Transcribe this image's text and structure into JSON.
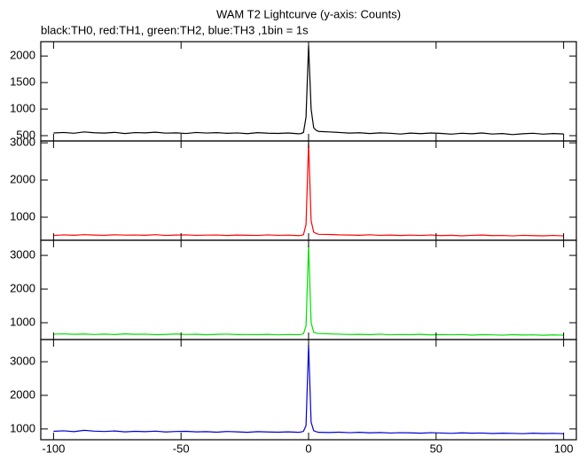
{
  "chart_data": {
    "type": "line",
    "title": "WAM T2 Lightcurve (y-axis: Counts)",
    "subtitle": "black:TH0, red:TH1, green:TH2, blue:TH3 ,1bin = 1s",
    "x": [
      -100,
      -96,
      -92,
      -88,
      -84,
      -80,
      -76,
      -72,
      -68,
      -64,
      -60,
      -56,
      -52,
      -48,
      -44,
      -40,
      -36,
      -32,
      -28,
      -24,
      -20,
      -16,
      -12,
      -8,
      -4,
      -3,
      -2,
      -1,
      0,
      1,
      2,
      3,
      4,
      8,
      12,
      16,
      20,
      24,
      28,
      32,
      36,
      40,
      44,
      48,
      52,
      56,
      60,
      64,
      68,
      72,
      76,
      80,
      84,
      88,
      92,
      96,
      100
    ],
    "xlim": [
      -105,
      105
    ],
    "xticks": [
      -100,
      -50,
      0,
      50,
      100
    ],
    "panels": [
      {
        "ylim": [
          400,
          2270
        ],
        "yticks": [
          500,
          1000,
          1500,
          2000
        ],
        "series": [
          {
            "color": "#000000",
            "values": [
              550,
              560,
              545,
              570,
              555,
              548,
              562,
              540,
              558,
              552,
              565,
              547,
              553,
              541,
              560,
              549,
              556,
              544,
              551,
              538,
              557,
              546,
              542,
              550,
              535,
              540,
              560,
              850,
              2200,
              1000,
              650,
              600,
              580,
              570,
              560,
              548,
              555,
              540,
              552,
              545,
              530,
              548,
              538,
              550,
              542,
              528,
              545,
              536,
              550,
              530,
              540,
              520,
              535,
              545,
              528,
              540,
              532
            ]
          }
        ]
      },
      {
        "ylim": [
          380,
          3050
        ],
        "yticks": [
          1000,
          2000,
          3000
        ],
        "series": [
          {
            "color": "#ff0000",
            "values": [
              510,
              525,
              515,
              530,
              520,
              512,
              528,
              518,
              522,
              515,
              530,
              510,
              520,
              525,
              512,
              518,
              522,
              508,
              520,
              515,
              510,
              525,
              512,
              518,
              505,
              510,
              530,
              800,
              3000,
              900,
              600,
              560,
              540,
              535,
              525,
              520,
              515,
              528,
              512,
              520,
              508,
              518,
              510,
              522,
              505,
              515,
              500,
              512,
              520,
              505,
              510,
              498,
              512,
              505,
              500,
              510,
              498
            ]
          }
        ]
      },
      {
        "ylim": [
          500,
          3450
        ],
        "yticks": [
          1000,
          2000,
          3000
        ],
        "series": [
          {
            "color": "#00e000",
            "values": [
              660,
              670,
              655,
              665,
              650,
              662,
              648,
              668,
              655,
              660,
              645,
              652,
              665,
              650,
              658,
              642,
              655,
              660,
              648,
              650,
              645,
              655,
              640,
              650,
              645,
              650,
              670,
              900,
              3300,
              1000,
              720,
              690,
              680,
              670,
              660,
              650,
              655,
              645,
              660,
              640,
              650,
              645,
              655,
              638,
              648,
              640,
              650,
              632,
              645,
              640,
              630,
              645,
              635,
              640,
              628,
              638,
              630
            ]
          }
        ]
      },
      {
        "ylim": [
          680,
          3660
        ],
        "yticks": [
          1000,
          2000,
          3000
        ],
        "series": [
          {
            "color": "#0000d0",
            "values": [
              930,
              945,
              920,
              960,
              935,
              925,
              940,
              915,
              930,
              920,
              935,
              910,
              925,
              930,
              915,
              920,
              905,
              925,
              915,
              900,
              920,
              910,
              905,
              915,
              900,
              910,
              930,
              1100,
              3500,
              1200,
              950,
              920,
              900,
              895,
              905,
              890,
              900,
              885,
              895,
              880,
              890,
              885,
              875,
              890,
              880,
              870,
              885,
              875,
              880,
              865,
              875,
              870,
              860,
              875,
              865,
              870,
              860
            ]
          }
        ]
      }
    ]
  }
}
